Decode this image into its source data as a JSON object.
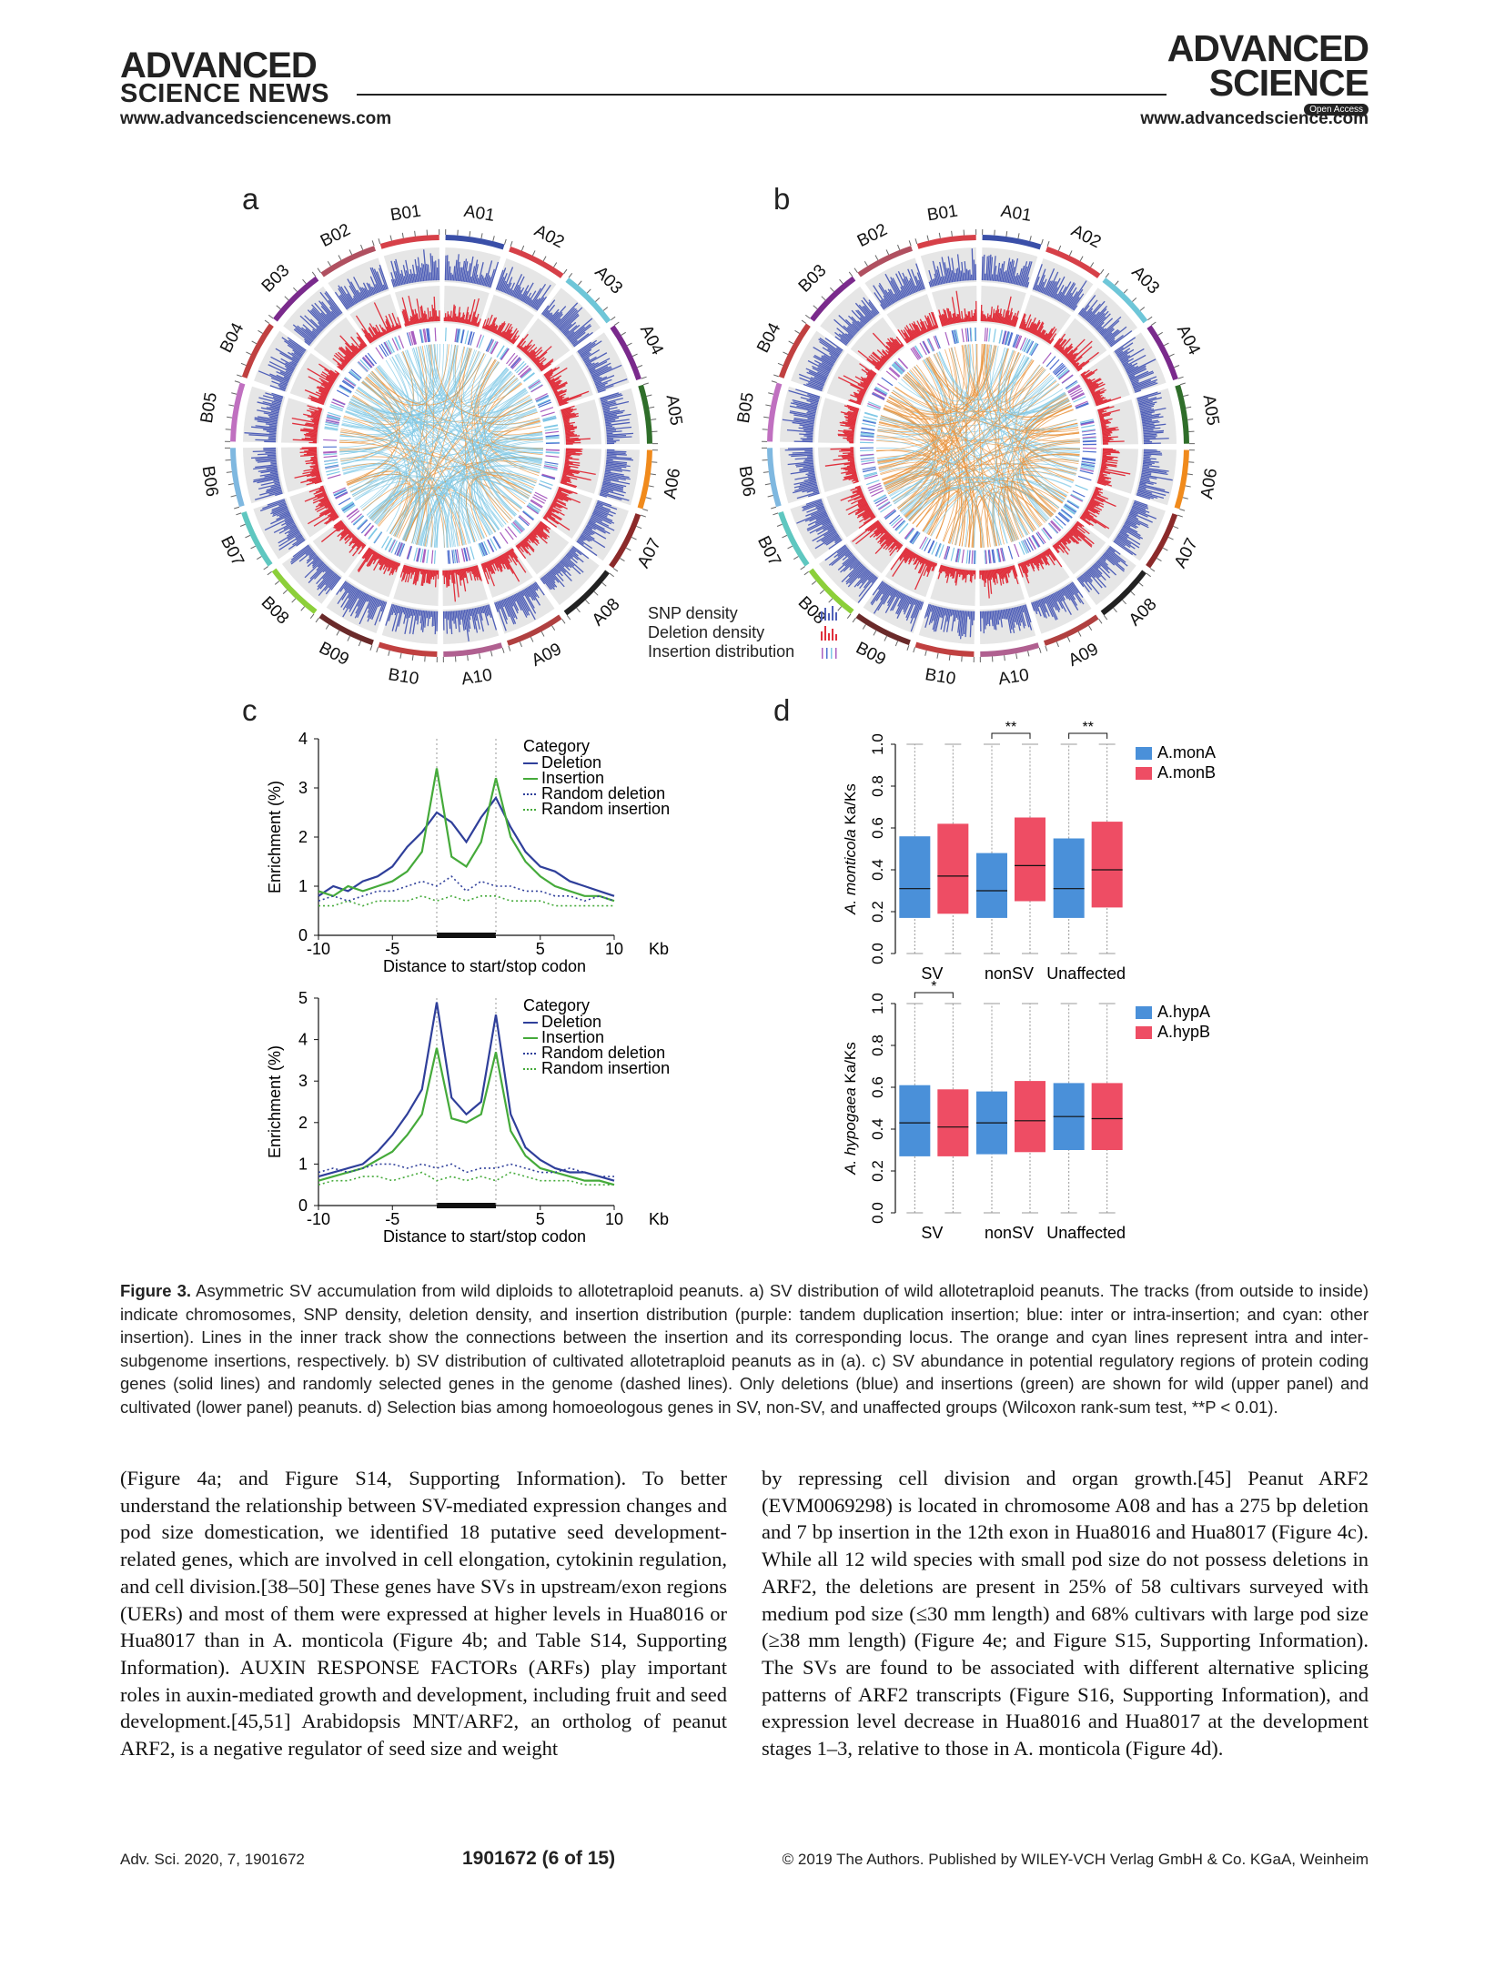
{
  "header": {
    "left_logo_line1": "ADVANCED",
    "left_logo_line2": "SCIENCE NEWS",
    "right_logo_line1": "ADVANCED",
    "right_logo_line2": "SCIENCE",
    "right_logo_badge": "Open Access",
    "left_url": "www.advancedsciencenews.com",
    "right_url": "www.advancedscience.com"
  },
  "figure": {
    "panel_a": "a",
    "panel_b": "b",
    "panel_c": "c",
    "panel_d": "d",
    "circos_legend": [
      "SNP density",
      "Deletion density",
      "Insertion distribution"
    ],
    "chromosomes": [
      "A01",
      "A02",
      "A03",
      "A04",
      "A05",
      "A06",
      "A07",
      "A08",
      "A09",
      "A10",
      "B10",
      "B09",
      "B08",
      "B07",
      "B06",
      "B05",
      "B04",
      "B03",
      "B02",
      "B01"
    ],
    "colors": {
      "snp": "#4f5fb8",
      "deletion": "#e0303c",
      "intra_line": "#e8923a",
      "inter_line": "#7fc8e6",
      "deletion_line": "#2f3f9a",
      "insertion_line": "#45aa3a",
      "monA": "#4a90d9",
      "monB": "#ee4d64"
    }
  },
  "chart_data": [
    {
      "type": "line",
      "panel": "c-upper",
      "xlabel": "Distance to start/stop codon",
      "x_unit": "Kb",
      "ylabel": "Enrichment (%)",
      "xlim": [
        -10,
        10
      ],
      "ylim": [
        0,
        4
      ],
      "x_ticks": [
        "-10",
        "-5",
        "5",
        "10"
      ],
      "y_ticks": [
        "0",
        "1",
        "2",
        "3",
        "4"
      ],
      "legend_title": "Category",
      "legend_placement": "top-right",
      "x": [
        -10,
        -9,
        -8,
        -7,
        -6,
        -5,
        -4,
        -3,
        -2,
        -1,
        0,
        1,
        2,
        3,
        4,
        5,
        6,
        7,
        8,
        9,
        10
      ],
      "series": [
        {
          "name": "Deletion",
          "style": "solid",
          "values": [
            0.8,
            1.0,
            0.9,
            1.1,
            1.2,
            1.4,
            1.8,
            2.1,
            2.5,
            2.3,
            1.9,
            2.4,
            2.8,
            2.2,
            1.7,
            1.4,
            1.3,
            1.1,
            1.0,
            0.9,
            0.8
          ]
        },
        {
          "name": "Insertion",
          "style": "solid",
          "values": [
            0.9,
            0.8,
            1.0,
            0.9,
            1.0,
            1.1,
            1.3,
            1.7,
            3.4,
            1.6,
            1.4,
            1.9,
            3.2,
            2.0,
            1.5,
            1.2,
            1.0,
            0.9,
            0.8,
            0.8,
            0.7
          ]
        },
        {
          "name": "Random deletion",
          "style": "dotted",
          "values": [
            0.7,
            0.8,
            0.7,
            0.8,
            0.9,
            0.9,
            1.0,
            1.1,
            1.0,
            1.2,
            0.9,
            1.1,
            1.0,
            1.0,
            0.9,
            0.9,
            0.8,
            0.8,
            0.7,
            0.8,
            0.7
          ]
        },
        {
          "name": "Random insertion",
          "style": "dotted",
          "values": [
            0.6,
            0.6,
            0.7,
            0.6,
            0.7,
            0.7,
            0.7,
            0.8,
            0.7,
            0.8,
            0.7,
            0.8,
            0.8,
            0.7,
            0.7,
            0.7,
            0.6,
            0.6,
            0.6,
            0.6,
            0.6
          ]
        }
      ]
    },
    {
      "type": "line",
      "panel": "c-lower",
      "xlabel": "Distance to start/stop codon",
      "x_unit": "Kb",
      "ylabel": "Enrichment (%)",
      "xlim": [
        -10,
        10
      ],
      "ylim": [
        0,
        5
      ],
      "x_ticks": [
        "-10",
        "-5",
        "5",
        "10"
      ],
      "y_ticks": [
        "0",
        "1",
        "2",
        "3",
        "4",
        "5"
      ],
      "legend_title": "Category",
      "legend_placement": "top-right",
      "x": [
        -10,
        -9,
        -8,
        -7,
        -6,
        -5,
        -4,
        -3,
        -2,
        -1,
        0,
        1,
        2,
        3,
        4,
        5,
        6,
        7,
        8,
        9,
        10
      ],
      "series": [
        {
          "name": "Deletion",
          "style": "solid",
          "values": [
            0.7,
            0.8,
            0.9,
            1.0,
            1.3,
            1.7,
            2.2,
            2.8,
            4.9,
            2.6,
            2.2,
            2.5,
            4.6,
            2.2,
            1.4,
            1.1,
            0.9,
            0.8,
            0.8,
            0.7,
            0.6
          ]
        },
        {
          "name": "Insertion",
          "style": "solid",
          "values": [
            0.6,
            0.7,
            0.8,
            0.9,
            1.1,
            1.3,
            1.7,
            2.2,
            3.8,
            2.1,
            2.0,
            2.2,
            3.7,
            1.8,
            1.2,
            0.9,
            0.8,
            0.7,
            0.6,
            0.6,
            0.5
          ]
        },
        {
          "name": "Random deletion",
          "style": "dotted",
          "values": [
            0.8,
            0.9,
            0.8,
            0.9,
            1.0,
            1.0,
            0.9,
            1.0,
            0.9,
            1.0,
            0.8,
            0.9,
            0.9,
            1.0,
            0.9,
            0.8,
            0.8,
            0.9,
            0.8,
            0.7,
            0.7
          ]
        },
        {
          "name": "Random insertion",
          "style": "dotted",
          "values": [
            0.5,
            0.6,
            0.6,
            0.7,
            0.7,
            0.6,
            0.7,
            0.8,
            0.6,
            0.7,
            0.6,
            0.7,
            0.6,
            0.8,
            0.7,
            0.6,
            0.6,
            0.6,
            0.5,
            0.5,
            0.5
          ]
        }
      ]
    },
    {
      "type": "box",
      "panel": "d-upper",
      "ylabel_species": "A. monticola",
      "ylabel_suffix": " Ka/Ks",
      "ylim": [
        0.0,
        1.0
      ],
      "y_ticks": [
        "0.0",
        "0.2",
        "0.4",
        "0.6",
        "0.8",
        "1.0"
      ],
      "categories": [
        "SV",
        "nonSV",
        "Unaffected"
      ],
      "significance": [
        "",
        "**",
        "**"
      ],
      "legend_placement": "top-right",
      "series": [
        {
          "name": "A.monA",
          "boxes": [
            {
              "q1": 0.17,
              "median": 0.31,
              "q3": 0.56
            },
            {
              "q1": 0.17,
              "median": 0.3,
              "q3": 0.48
            },
            {
              "q1": 0.17,
              "median": 0.31,
              "q3": 0.55
            }
          ]
        },
        {
          "name": "A.monB",
          "boxes": [
            {
              "q1": 0.19,
              "median": 0.37,
              "q3": 0.62
            },
            {
              "q1": 0.25,
              "median": 0.42,
              "q3": 0.65
            },
            {
              "q1": 0.22,
              "median": 0.4,
              "q3": 0.63
            }
          ]
        }
      ]
    },
    {
      "type": "box",
      "panel": "d-lower",
      "ylabel_species": "A. hypogaea",
      "ylabel_suffix": " Ka/Ks",
      "ylim": [
        0.0,
        1.0
      ],
      "y_ticks": [
        "0.0",
        "0.2",
        "0.4",
        "0.6",
        "0.8",
        "1.0"
      ],
      "categories": [
        "SV",
        "nonSV",
        "Unaffected"
      ],
      "significance": [
        "*",
        "",
        ""
      ],
      "legend_placement": "top-right",
      "series": [
        {
          "name": "A.hypA",
          "boxes": [
            {
              "q1": 0.27,
              "median": 0.43,
              "q3": 0.61
            },
            {
              "q1": 0.28,
              "median": 0.43,
              "q3": 0.58
            },
            {
              "q1": 0.3,
              "median": 0.46,
              "q3": 0.62
            }
          ]
        },
        {
          "name": "A.hypB",
          "boxes": [
            {
              "q1": 0.27,
              "median": 0.41,
              "q3": 0.59
            },
            {
              "q1": 0.29,
              "median": 0.44,
              "q3": 0.63
            },
            {
              "q1": 0.3,
              "median": 0.45,
              "q3": 0.62
            }
          ]
        }
      ]
    }
  ],
  "caption": {
    "label": "Figure 3.",
    "text": "Asymmetric SV accumulation from wild diploids to allotetraploid peanuts. a) SV distribution of wild allotetraploid peanuts. The tracks (from outside to inside) indicate chromosomes, SNP density, deletion density, and insertion distribution (purple: tandem duplication insertion; blue: inter or intra-insertion; and cyan: other insertion). Lines in the inner track show the connections between the insertion and its corresponding locus. The orange and cyan lines represent intra and inter-subgenome insertions, respectively. b) SV distribution of cultivated allotetraploid peanuts as in (a). c) SV abundance in potential regulatory regions of protein coding genes (solid lines) and randomly selected genes in the genome (dashed lines). Only deletions (blue) and insertions (green) are shown for wild (upper panel) and cultivated (lower panel) peanuts. d) Selection bias among homoeologous genes in SV, non-SV, and unaffected groups (Wilcoxon rank-sum test, **P < 0.01)."
  },
  "body": {
    "left": "(Figure 4a; and Figure S14, Supporting Information). To better understand the relationship between SV-mediated expression changes and pod size domestication, we identified 18 putative seed development-related genes, which are involved in cell elongation, cytokinin regulation, and cell division.[38–50] These genes have SVs in upstream/exon regions (UERs) and most of them were expressed at higher levels in Hua8016 or Hua8017 than in A. monticola (Figure 4b; and Table S14, Supporting Information). AUXIN RESPONSE FACTORs (ARFs) play important roles in auxin-mediated growth and development, including fruit and seed development.[45,51] Arabidopsis MNT/ARF2, an ortholog of peanut ARF2, is a negative regulator of seed size and weight",
    "right": "by repressing cell division and organ growth.[45] Peanut ARF2 (EVM0069298) is located in chromosome A08 and has a 275 bp deletion and 7 bp insertion in the 12th exon in Hua8016 and Hua8017 (Figure 4c). While all 12 wild species with small pod size do not possess deletions in ARF2, the deletions are present in 25% of 58 cultivars surveyed with medium pod size (≤30 mm length) and 68% cultivars with large pod size (≥38 mm length) (Figure 4e; and Figure S15, Supporting Information). The SVs are found to be associated with different alternative splicing patterns of ARF2 transcripts (Figure S16, Supporting Information), and expression level decrease in Hua8016 and Hua8017 at the development stages 1–3, relative to those in A. monticola (Figure 4d)."
  },
  "footer": {
    "journal": "Adv. Sci. 2020, 7, 1901672",
    "page": "1901672 (6 of 15)",
    "copyright": "© 2019 The Authors. Published by WILEY-VCH Verlag GmbH & Co. KGaA, Weinheim"
  }
}
